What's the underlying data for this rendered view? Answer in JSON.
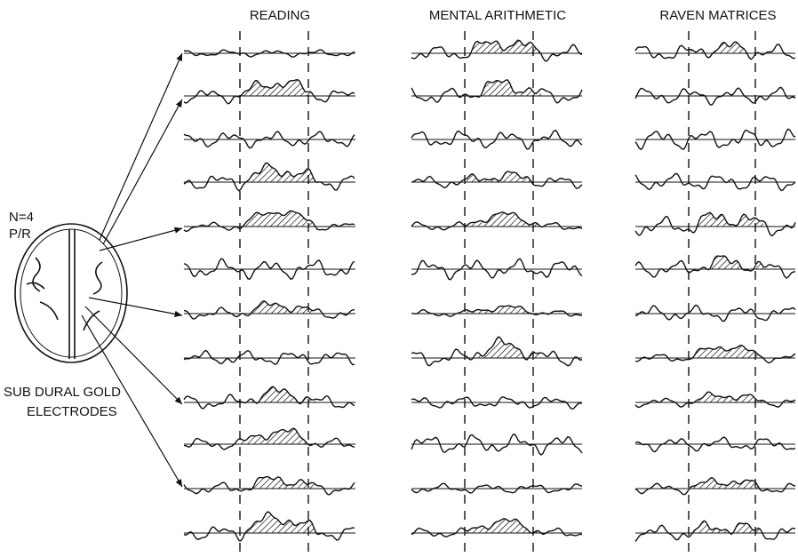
{
  "headers": [
    "READING",
    "MENTAL ARITHMETIC",
    "RAVEN MATRICES"
  ],
  "subject": {
    "count": "N=4",
    "id": "P/R"
  },
  "electrodes": [
    "SUB DURAL GOLD",
    "ELECTRODES"
  ]
}
